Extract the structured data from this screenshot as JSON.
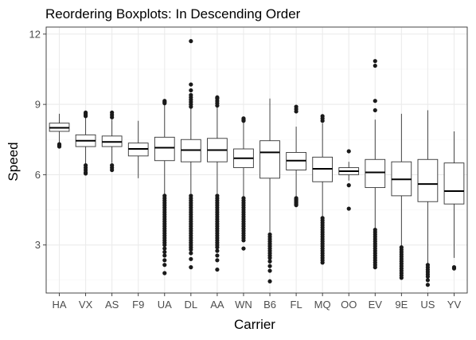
{
  "chart_data": {
    "type": "boxplot",
    "title": "Reordering Boxplots: In Descending Order",
    "xlabel": "Carrier",
    "ylabel": "Speed",
    "ylim": [
      0.95,
      12.3
    ],
    "y_ticks": [
      3,
      6,
      9,
      12
    ],
    "grid": true,
    "legend": "none",
    "colors": {
      "panel_bg": "#ffffff",
      "grid_major": "#ebebeb",
      "grid_minor": "#f5f5f5",
      "panel_border": "#333333",
      "box_stroke": "#333333",
      "outlier": "#1a1a1a"
    },
    "categories": [
      "HA",
      "VX",
      "AS",
      "F9",
      "UA",
      "DL",
      "AA",
      "WN",
      "B6",
      "FL",
      "MQ",
      "OO",
      "EV",
      "9E",
      "US",
      "YV"
    ],
    "series": [
      {
        "q1": 7.85,
        "median": 8.0,
        "q3": 8.2,
        "whisker_low": 7.35,
        "whisker_high": 8.6,
        "outliers": [
          7.3,
          7.25,
          7.2
        ]
      },
      {
        "q1": 7.2,
        "median": 7.45,
        "q3": 7.7,
        "whisker_low": 6.45,
        "whisker_high": 8.45,
        "outliers": [
          6.4,
          6.3,
          6.2,
          6.1,
          6.05,
          8.5,
          8.55,
          8.6,
          8.65
        ]
      },
      {
        "q1": 7.2,
        "median": 7.4,
        "q3": 7.65,
        "whisker_low": 6.5,
        "whisker_high": 8.35,
        "outliers": [
          6.4,
          6.3,
          6.2,
          8.45,
          8.55,
          8.65
        ]
      },
      {
        "q1": 6.8,
        "median": 7.1,
        "q3": 7.35,
        "whisker_low": 5.85,
        "whisker_high": 8.3,
        "outliers": []
      },
      {
        "q1": 6.6,
        "median": 7.15,
        "q3": 7.6,
        "whisker_low": 5.15,
        "whisker_high": 9.0,
        "outliers": [
          9.05,
          9.1,
          9.15,
          5.1,
          5.0,
          4.9,
          4.8,
          4.7,
          4.6,
          4.5,
          4.4,
          4.3,
          4.2,
          4.1,
          4.0,
          3.9,
          3.8,
          3.7,
          3.6,
          3.5,
          3.4,
          3.3,
          3.2,
          3.1,
          3.0,
          2.85,
          2.7,
          2.55,
          2.35,
          2.15,
          1.8
        ]
      },
      {
        "q1": 6.55,
        "median": 7.05,
        "q3": 7.5,
        "whisker_low": 5.2,
        "whisker_high": 8.85,
        "outliers": [
          8.9,
          9.0,
          9.1,
          9.2,
          9.3,
          9.4,
          9.6,
          9.85,
          11.7,
          5.1,
          5.0,
          4.9,
          4.8,
          4.7,
          4.6,
          4.5,
          4.4,
          4.3,
          4.2,
          4.1,
          4.0,
          3.9,
          3.8,
          3.7,
          3.6,
          3.5,
          3.4,
          3.3,
          3.2,
          3.1,
          3.0,
          2.9,
          2.8,
          2.65,
          2.4,
          2.05
        ]
      },
      {
        "q1": 6.55,
        "median": 7.05,
        "q3": 7.55,
        "whisker_low": 5.2,
        "whisker_high": 8.9,
        "outliers": [
          8.95,
          9.05,
          9.15,
          9.25,
          9.3,
          5.1,
          5.0,
          4.9,
          4.8,
          4.7,
          4.6,
          4.5,
          4.4,
          4.3,
          4.2,
          4.1,
          4.0,
          3.9,
          3.8,
          3.7,
          3.6,
          3.5,
          3.4,
          3.3,
          3.2,
          3.1,
          3.0,
          2.9,
          2.75,
          2.55,
          2.35,
          1.95
        ]
      },
      {
        "q1": 6.3,
        "median": 6.7,
        "q3": 7.1,
        "whisker_low": 5.05,
        "whisker_high": 8.25,
        "outliers": [
          8.3,
          8.35,
          8.4,
          5.0,
          4.9,
          4.8,
          4.7,
          4.6,
          4.5,
          4.4,
          4.3,
          4.2,
          4.1,
          4.0,
          3.9,
          3.8,
          3.7,
          3.6,
          3.5,
          3.4,
          3.3,
          3.2,
          2.85
        ]
      },
      {
        "q1": 5.85,
        "median": 6.95,
        "q3": 7.45,
        "whisker_low": 3.55,
        "whisker_high": 9.25,
        "outliers": [
          3.45,
          3.35,
          3.25,
          3.15,
          3.05,
          2.95,
          2.85,
          2.75,
          2.65,
          2.55,
          2.45,
          2.3,
          2.1,
          1.9,
          1.45
        ]
      },
      {
        "q1": 6.2,
        "median": 6.6,
        "q3": 6.95,
        "whisker_low": 5.05,
        "whisker_high": 8.05,
        "outliers": [
          8.7,
          8.8,
          8.9,
          5.0,
          4.95,
          4.9,
          4.85,
          4.8,
          4.75,
          4.7
        ]
      },
      {
        "q1": 5.7,
        "median": 6.25,
        "q3": 6.75,
        "whisker_low": 4.2,
        "whisker_high": 8.2,
        "outliers": [
          8.3,
          8.4,
          8.5,
          4.15,
          4.05,
          3.95,
          3.85,
          3.75,
          3.65,
          3.55,
          3.45,
          3.35,
          3.25,
          3.15,
          3.05,
          2.95,
          2.85,
          2.75,
          2.65,
          2.55,
          2.45,
          2.35,
          2.25
        ]
      },
      {
        "q1": 6.0,
        "median": 6.15,
        "q3": 6.3,
        "whisker_low": 5.75,
        "whisker_high": 6.55,
        "outliers": [
          7.0,
          5.55,
          4.55
        ]
      },
      {
        "q1": 5.45,
        "median": 6.1,
        "q3": 6.65,
        "whisker_low": 3.7,
        "whisker_high": 8.35,
        "outliers": [
          8.75,
          9.15,
          10.65,
          10.85,
          3.65,
          3.55,
          3.45,
          3.35,
          3.25,
          3.15,
          3.05,
          2.95,
          2.85,
          2.75,
          2.65,
          2.55,
          2.45,
          2.35,
          2.25,
          2.15,
          2.05
        ]
      },
      {
        "q1": 5.1,
        "median": 5.8,
        "q3": 6.55,
        "whisker_low": 2.95,
        "whisker_high": 8.6,
        "outliers": [
          2.9,
          2.8,
          2.7,
          2.6,
          2.5,
          2.4,
          2.3,
          2.2,
          2.1,
          2.0,
          1.9,
          1.8,
          1.7,
          1.6
        ]
      },
      {
        "q1": 4.85,
        "median": 5.6,
        "q3": 6.65,
        "whisker_low": 2.2,
        "whisker_high": 8.75,
        "outliers": [
          2.15,
          2.05,
          1.95,
          1.85,
          1.75,
          1.65,
          1.5,
          1.3
        ]
      },
      {
        "q1": 4.75,
        "median": 5.3,
        "q3": 6.5,
        "whisker_low": 2.45,
        "whisker_high": 7.85,
        "outliers": [
          2.05,
          2.0
        ]
      }
    ]
  }
}
